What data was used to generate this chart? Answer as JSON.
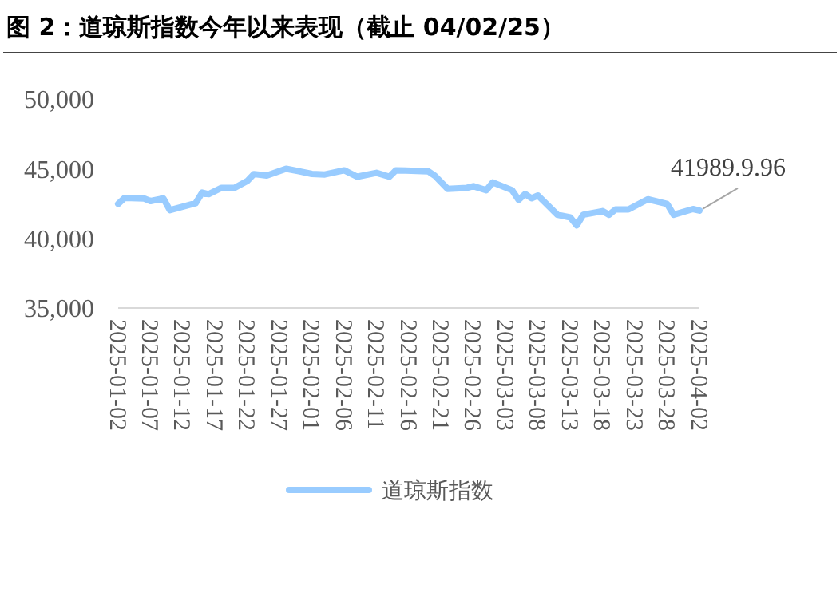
{
  "chart_data": {
    "type": "line",
    "title": "图 2：道琼斯指数今年以来表现（截止 04/02/25）",
    "x": [
      "2025-01-02",
      "2025-01-03",
      "2025-01-06",
      "2025-01-07",
      "2025-01-09",
      "2025-01-10",
      "2025-01-14",
      "2025-01-15",
      "2025-01-16",
      "2025-01-18",
      "2025-01-20",
      "2025-01-22",
      "2025-01-23",
      "2025-01-25",
      "2025-01-28",
      "2025-01-30",
      "2025-02-01",
      "2025-02-03",
      "2025-02-06",
      "2025-02-08",
      "2025-02-11",
      "2025-02-13",
      "2025-02-14",
      "2025-02-19",
      "2025-02-20",
      "2025-02-22",
      "2025-02-25",
      "2025-02-26",
      "2025-02-28",
      "2025-03-01",
      "2025-03-04",
      "2025-03-05",
      "2025-03-06",
      "2025-03-07",
      "2025-03-08",
      "2025-03-11",
      "2025-03-13",
      "2025-03-14",
      "2025-03-15",
      "2025-03-18",
      "2025-03-19",
      "2025-03-20",
      "2025-03-22",
      "2025-03-25",
      "2025-03-28",
      "2025-03-29",
      "2025-04-01",
      "2025-04-02"
    ],
    "series": [
      {
        "name": "道琼斯指数",
        "color": "#99ccff",
        "values": [
          42470,
          42900,
          42860,
          42670,
          42860,
          42020,
          42520,
          43280,
          43170,
          43620,
          43620,
          44120,
          44610,
          44500,
          44990,
          44810,
          44620,
          44580,
          44880,
          44420,
          44700,
          44420,
          44880,
          44810,
          44500,
          43550,
          43620,
          43740,
          43450,
          44010,
          43450,
          42760,
          43180,
          42870,
          43070,
          41690,
          41500,
          40930,
          41690,
          41950,
          41690,
          42070,
          42070,
          42800,
          42460,
          41690,
          42100,
          41989.96
        ]
      }
    ],
    "xlim": [
      "2025-01-02",
      "2025-04-02"
    ],
    "xticks": [
      "2025-01-02",
      "2025-01-07",
      "2025-01-12",
      "2025-01-17",
      "2025-01-22",
      "2025-01-27",
      "2025-02-01",
      "2025-02-06",
      "2025-02-11",
      "2025-02-16",
      "2025-02-21",
      "2025-02-26",
      "2025-03-03",
      "2025-03-08",
      "2025-03-13",
      "2025-03-18",
      "2025-03-23",
      "2025-03-28",
      "2025-04-02"
    ],
    "ylim": [
      35000,
      50000
    ],
    "yticks": [
      {
        "value": 35000,
        "label": "35,000"
      },
      {
        "value": 40000,
        "label": "40,000"
      },
      {
        "value": 45000,
        "label": "45,000"
      },
      {
        "value": 50000,
        "label": "50,000"
      }
    ],
    "annotations": [
      {
        "text": "41989.9.96",
        "x": "2025-04-02",
        "y": 41989.96
      }
    ],
    "grid": false,
    "legend": "bottom",
    "marker": "none",
    "line_style": "solid"
  }
}
